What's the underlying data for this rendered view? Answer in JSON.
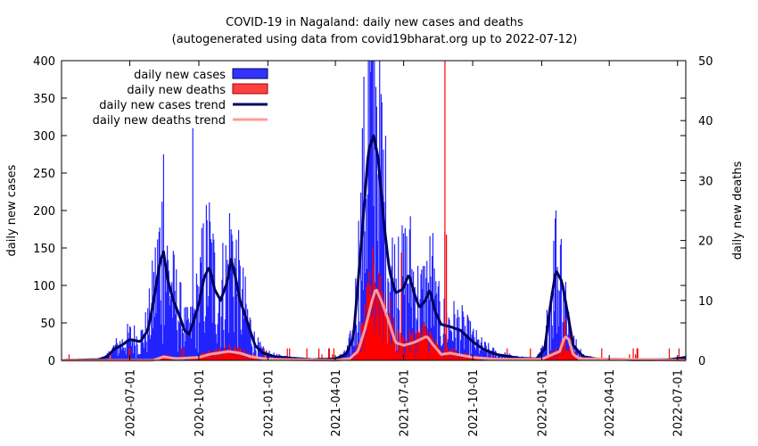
{
  "chart_data": {
    "type": "bar",
    "title": "COVID-19 in Nagaland: daily new cases and deaths",
    "subtitle": "(autogenerated using data from covid19bharat.org up to 2022-07-12)",
    "ylabel": "daily new cases",
    "y2label": "daily new deaths",
    "ylim": [
      0,
      400
    ],
    "y2lim": [
      0,
      50
    ],
    "yticks": [
      "0",
      "50",
      "100",
      "150",
      "200",
      "250",
      "300",
      "350",
      "400"
    ],
    "y2ticks": [
      "0",
      "10",
      "20",
      "30",
      "40",
      "50"
    ],
    "xrange": [
      "2020-04-01",
      "2022-07-12"
    ],
    "xticks": [
      "2020-07-01",
      "2020-10-01",
      "2021-01-01",
      "2021-04-01",
      "2021-07-01",
      "2021-10-01",
      "2022-01-01",
      "2022-04-01",
      "2022-07-01"
    ],
    "legend_position": "top-left",
    "series": [
      {
        "name": "daily new cases",
        "style": "bars",
        "axis": "left",
        "color": "#2b2bff"
      },
      {
        "name": "daily new deaths",
        "style": "bars",
        "axis": "right",
        "color": "#ff2020"
      },
      {
        "name": "daily new cases trend",
        "style": "line",
        "axis": "left",
        "color": "#000060"
      },
      {
        "name": "daily new deaths trend",
        "style": "line",
        "axis": "right",
        "color": "#ff9a9a"
      }
    ],
    "cases_trend_points": [
      [
        "2020-04-01",
        0
      ],
      [
        "2020-05-20",
        1
      ],
      [
        "2020-06-01",
        5
      ],
      [
        "2020-06-10",
        15
      ],
      [
        "2020-06-20",
        20
      ],
      [
        "2020-07-01",
        28
      ],
      [
        "2020-07-15",
        25
      ],
      [
        "2020-07-25",
        40
      ],
      [
        "2020-08-01",
        75
      ],
      [
        "2020-08-10",
        130
      ],
      [
        "2020-08-15",
        145
      ],
      [
        "2020-08-20",
        110
      ],
      [
        "2020-08-28",
        80
      ],
      [
        "2020-09-05",
        60
      ],
      [
        "2020-09-12",
        40
      ],
      [
        "2020-09-18",
        35
      ],
      [
        "2020-09-25",
        55
      ],
      [
        "2020-10-01",
        75
      ],
      [
        "2020-10-08",
        110
      ],
      [
        "2020-10-15",
        125
      ],
      [
        "2020-10-22",
        95
      ],
      [
        "2020-10-30",
        80
      ],
      [
        "2020-11-08",
        105
      ],
      [
        "2020-11-13",
        135
      ],
      [
        "2020-11-18",
        115
      ],
      [
        "2020-11-25",
        80
      ],
      [
        "2020-12-05",
        50
      ],
      [
        "2020-12-15",
        20
      ],
      [
        "2020-12-25",
        10
      ],
      [
        "2021-01-10",
        5
      ],
      [
        "2021-02-01",
        3
      ],
      [
        "2021-03-01",
        1
      ],
      [
        "2021-04-01",
        2
      ],
      [
        "2021-04-15",
        8
      ],
      [
        "2021-04-25",
        30
      ],
      [
        "2021-05-05",
        150
      ],
      [
        "2021-05-15",
        280
      ],
      [
        "2021-05-22",
        300
      ],
      [
        "2021-05-28",
        270
      ],
      [
        "2021-06-05",
        180
      ],
      [
        "2021-06-12",
        120
      ],
      [
        "2021-06-20",
        90
      ],
      [
        "2021-06-30",
        95
      ],
      [
        "2021-07-08",
        115
      ],
      [
        "2021-07-15",
        90
      ],
      [
        "2021-07-22",
        70
      ],
      [
        "2021-07-30",
        80
      ],
      [
        "2021-08-05",
        95
      ],
      [
        "2021-08-12",
        65
      ],
      [
        "2021-08-20",
        48
      ],
      [
        "2021-09-01",
        45
      ],
      [
        "2021-09-15",
        40
      ],
      [
        "2021-10-01",
        25
      ],
      [
        "2021-10-15",
        15
      ],
      [
        "2021-11-01",
        8
      ],
      [
        "2021-12-01",
        3
      ],
      [
        "2021-12-25",
        2
      ],
      [
        "2022-01-05",
        15
      ],
      [
        "2022-01-12",
        70
      ],
      [
        "2022-01-20",
        120
      ],
      [
        "2022-01-28",
        105
      ],
      [
        "2022-02-05",
        60
      ],
      [
        "2022-02-12",
        20
      ],
      [
        "2022-02-25",
        5
      ],
      [
        "2022-03-15",
        2
      ],
      [
        "2022-05-01",
        1
      ],
      [
        "2022-06-20",
        1
      ],
      [
        "2022-07-12",
        4
      ]
    ],
    "deaths_trend_points": [
      [
        "2020-04-01",
        0
      ],
      [
        "2020-08-01",
        0
      ],
      [
        "2020-08-15",
        0.6
      ],
      [
        "2020-09-01",
        0.3
      ],
      [
        "2020-10-01",
        0.5
      ],
      [
        "2020-10-15",
        1.0
      ],
      [
        "2020-11-10",
        1.5
      ],
      [
        "2020-11-25",
        1.2
      ],
      [
        "2020-12-10",
        0.6
      ],
      [
        "2021-01-01",
        0.2
      ],
      [
        "2021-04-01",
        0
      ],
      [
        "2021-04-20",
        0.3
      ],
      [
        "2021-05-01",
        1.5
      ],
      [
        "2021-05-10",
        5
      ],
      [
        "2021-05-20",
        10
      ],
      [
        "2021-05-25",
        12
      ],
      [
        "2021-06-01",
        10
      ],
      [
        "2021-06-10",
        7
      ],
      [
        "2021-06-20",
        3
      ],
      [
        "2021-07-01",
        2.5
      ],
      [
        "2021-07-15",
        3
      ],
      [
        "2021-08-01",
        4
      ],
      [
        "2021-08-10",
        2.5
      ],
      [
        "2021-08-20",
        1
      ],
      [
        "2021-09-01",
        1.2
      ],
      [
        "2021-10-01",
        0.5
      ],
      [
        "2021-11-01",
        0.2
      ],
      [
        "2022-01-01",
        0.2
      ],
      [
        "2022-01-25",
        1.5
      ],
      [
        "2022-02-01",
        4
      ],
      [
        "2022-02-06",
        3.5
      ],
      [
        "2022-02-12",
        1
      ],
      [
        "2022-02-20",
        0.3
      ],
      [
        "2022-07-12",
        0
      ]
    ],
    "cases_peaks": [
      [
        "2020-08-15",
        275
      ],
      [
        "2020-09-23",
        310
      ],
      [
        "2020-11-13",
        175
      ],
      [
        "2021-05-25",
        365
      ],
      [
        "2021-06-24",
        165
      ],
      [
        "2021-08-09",
        170
      ],
      [
        "2021-08-25",
        172
      ],
      [
        "2022-01-20",
        200
      ],
      [
        "2022-01-27",
        162
      ]
    ],
    "deaths_peaks": [
      [
        "2021-05-22",
        16
      ],
      [
        "2021-06-28",
        18
      ],
      [
        "2021-08-25",
        50
      ],
      [
        "2021-08-27",
        21
      ]
    ]
  }
}
